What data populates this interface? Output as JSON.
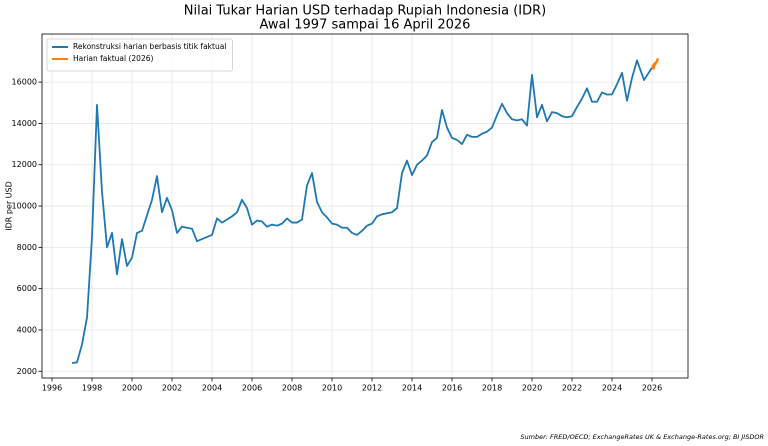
{
  "chart_data": {
    "type": "line",
    "title": "Nilai Tukar Harian USD terhadap Rupiah Indonesia (IDR)",
    "subtitle": "Awal 1997 sampai 16 April 2026",
    "y_label": "IDR per USD",
    "source": "Sumber: FRED/OECD; ExchangeRates UK & Exchange-Rates.org; BI JISDOR",
    "xlim": [
      1995.5,
      2027.8
    ],
    "ylim": [
      1675,
      18330
    ],
    "xticks": [
      1996,
      1998,
      2000,
      2002,
      2004,
      2006,
      2008,
      2010,
      2012,
      2014,
      2016,
      2018,
      2020,
      2022,
      2024,
      2026
    ],
    "yticks": [
      2000,
      4000,
      6000,
      8000,
      10000,
      12000,
      14000,
      16000
    ],
    "grid": true,
    "legend": "upper left",
    "series": [
      {
        "name": "Rekonstruksi harian berbasis titik faktual",
        "color": "#1f77b4",
        "x": [
          1997.0,
          1997.25,
          1997.5,
          1997.75,
          1998.0,
          1998.25,
          1998.5,
          1998.75,
          1999.0,
          1999.25,
          1999.5,
          1999.75,
          2000.0,
          2000.25,
          2000.5,
          2001.0,
          2001.25,
          2001.5,
          2001.75,
          2002.0,
          2002.25,
          2002.5,
          2003.0,
          2003.25,
          2003.5,
          2004.0,
          2004.25,
          2004.5,
          2005.0,
          2005.25,
          2005.5,
          2005.75,
          2006.0,
          2006.25,
          2006.5,
          2006.75,
          2007.0,
          2007.25,
          2007.5,
          2007.75,
          2008.0,
          2008.25,
          2008.5,
          2008.75,
          2009.0,
          2009.25,
          2009.5,
          2009.75,
          2010.0,
          2010.25,
          2010.5,
          2010.75,
          2011.0,
          2011.25,
          2011.5,
          2011.75,
          2012.0,
          2012.25,
          2012.5,
          2013.0,
          2013.25,
          2013.5,
          2013.75,
          2014.0,
          2014.25,
          2014.5,
          2014.75,
          2015.0,
          2015.25,
          2015.5,
          2015.75,
          2016.0,
          2016.25,
          2016.5,
          2016.75,
          2017.0,
          2017.25,
          2017.5,
          2017.75,
          2018.0,
          2018.25,
          2018.5,
          2018.75,
          2019.0,
          2019.25,
          2019.5,
          2019.75,
          2020.0,
          2020.25,
          2020.5,
          2020.75,
          2021.0,
          2021.25,
          2021.5,
          2021.75,
          2022.0,
          2022.25,
          2022.5,
          2022.75,
          2023.0,
          2023.25,
          2023.5,
          2023.75,
          2024.0,
          2024.25,
          2024.5,
          2024.75,
          2025.0,
          2025.25,
          2025.6,
          2026.0
        ],
        "values": [
          2400,
          2430,
          3300,
          4600,
          8500,
          14900,
          10700,
          8000,
          8700,
          6700,
          8400,
          7100,
          7500,
          8700,
          8800,
          10300,
          11450,
          9700,
          10400,
          9800,
          8700,
          9000,
          8900,
          8300,
          8400,
          8600,
          9400,
          9200,
          9500,
          9700,
          10300,
          9900,
          9100,
          9300,
          9250,
          9000,
          9100,
          9050,
          9150,
          9400,
          9200,
          9200,
          9350,
          11000,
          11600,
          10200,
          9700,
          9450,
          9150,
          9100,
          8950,
          8950,
          8700,
          8600,
          8800,
          9050,
          9150,
          9500,
          9600,
          9700,
          9900,
          11600,
          12200,
          11500,
          12000,
          12200,
          12450,
          13100,
          13300,
          14650,
          13800,
          13300,
          13200,
          13000,
          13450,
          13350,
          13350,
          13500,
          13600,
          13800,
          14400,
          14950,
          14500,
          14200,
          14150,
          14200,
          13900,
          16350,
          14300,
          14900,
          14100,
          14550,
          14500,
          14350,
          14300,
          14350,
          14800,
          15200,
          15700,
          15050,
          15050,
          15500,
          15400,
          15400,
          15900,
          16450,
          15100,
          16200,
          17050,
          16100,
          16700
        ]
      },
      {
        "name": "Harian faktual (2026)",
        "color": "#ff7f0e",
        "x": [
          2026.0,
          2026.05,
          2026.08,
          2026.12,
          2026.16,
          2026.2,
          2026.25,
          2026.29
        ],
        "values": [
          16750,
          16800,
          16650,
          16900,
          16850,
          16950,
          17000,
          17150
        ]
      }
    ]
  }
}
